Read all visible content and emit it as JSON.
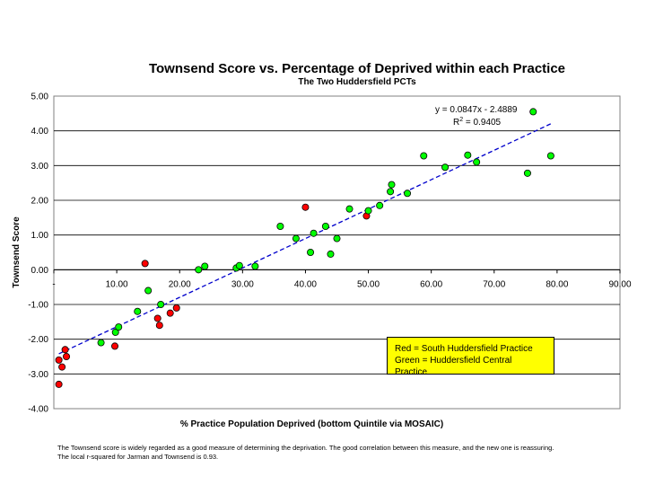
{
  "chart_data": {
    "type": "scatter",
    "title": "Townsend Score vs. Percentage of Deprived within each Practice",
    "subtitle": "The Two Huddersfield PCTs",
    "xlabel": "% Practice Population Deprived (bottom Quintile via MOSAIC)",
    "ylabel": "Townsend Score",
    "xlim": [
      0,
      90
    ],
    "ylim": [
      -4,
      5
    ],
    "x_tick_labels": [
      "-",
      "10.00",
      "20.00",
      "30.00",
      "40.00",
      "50.00",
      "60.00",
      "70.00",
      "80.00",
      "90.00"
    ],
    "y_tick_labels": [
      "5.00",
      "4.00",
      "3.00",
      "2.00",
      "1.00",
      "0.00",
      "-1.00",
      "-2.00",
      "-3.00",
      "-4.00"
    ],
    "grid": "horizontal",
    "series": [
      {
        "name": "South Huddersfield Practice",
        "color": "#ff0000",
        "points": [
          [
            0.8,
            -3.3
          ],
          [
            0.8,
            -2.6
          ],
          [
            1.3,
            -2.8
          ],
          [
            1.8,
            -2.3
          ],
          [
            2.0,
            -2.5
          ],
          [
            9.7,
            -2.2
          ],
          [
            14.5,
            0.18
          ],
          [
            16.5,
            -1.4
          ],
          [
            16.8,
            -1.6
          ],
          [
            18.5,
            -1.25
          ],
          [
            19.5,
            -1.1
          ],
          [
            40.0,
            1.8
          ],
          [
            49.7,
            1.55
          ]
        ]
      },
      {
        "name": "Huddersfield Central Practice",
        "color": "#00ff00",
        "points": [
          [
            7.5,
            -2.1
          ],
          [
            9.8,
            -1.8
          ],
          [
            10.3,
            -1.65
          ],
          [
            13.3,
            -1.2
          ],
          [
            15.0,
            -0.6
          ],
          [
            17.0,
            -1.0
          ],
          [
            23.0,
            0.0
          ],
          [
            24.0,
            0.1
          ],
          [
            29.0,
            0.05
          ],
          [
            29.5,
            0.12
          ],
          [
            32.0,
            0.1
          ],
          [
            36.0,
            1.25
          ],
          [
            38.5,
            0.9
          ],
          [
            40.8,
            0.5
          ],
          [
            41.3,
            1.05
          ],
          [
            43.2,
            1.25
          ],
          [
            44.0,
            0.45
          ],
          [
            45.0,
            0.9
          ],
          [
            47.0,
            1.75
          ],
          [
            50.0,
            1.7
          ],
          [
            51.8,
            1.85
          ],
          [
            53.5,
            2.25
          ],
          [
            53.7,
            2.45
          ],
          [
            56.2,
            2.2
          ],
          [
            58.8,
            3.28
          ],
          [
            62.2,
            2.95
          ],
          [
            65.8,
            3.3
          ],
          [
            67.2,
            3.1
          ],
          [
            75.3,
            2.78
          ],
          [
            76.2,
            4.55
          ],
          [
            79.0,
            3.28
          ]
        ]
      }
    ],
    "trendline": {
      "slope": 0.0847,
      "intercept": -2.4889,
      "x_range": [
        0.8,
        79.0
      ],
      "color": "#0000cc",
      "equation": "y = 0.0847x - 2.4889",
      "r2_prefix": "R",
      "r2_sup": "2",
      "r2_suffix": " = 0.9405"
    }
  },
  "legend": {
    "line1": "Red = South Huddersfield Practice",
    "line2": "Green = Huddersfield Central Practice"
  },
  "footnote": {
    "line1": "The Townsend score is widely regarded as a good measure of determining the deprivation. The good correlation between this measure, and the new one is reassuring.",
    "line2": "The local r-squared for Jarman and Townsend is 0.93."
  }
}
